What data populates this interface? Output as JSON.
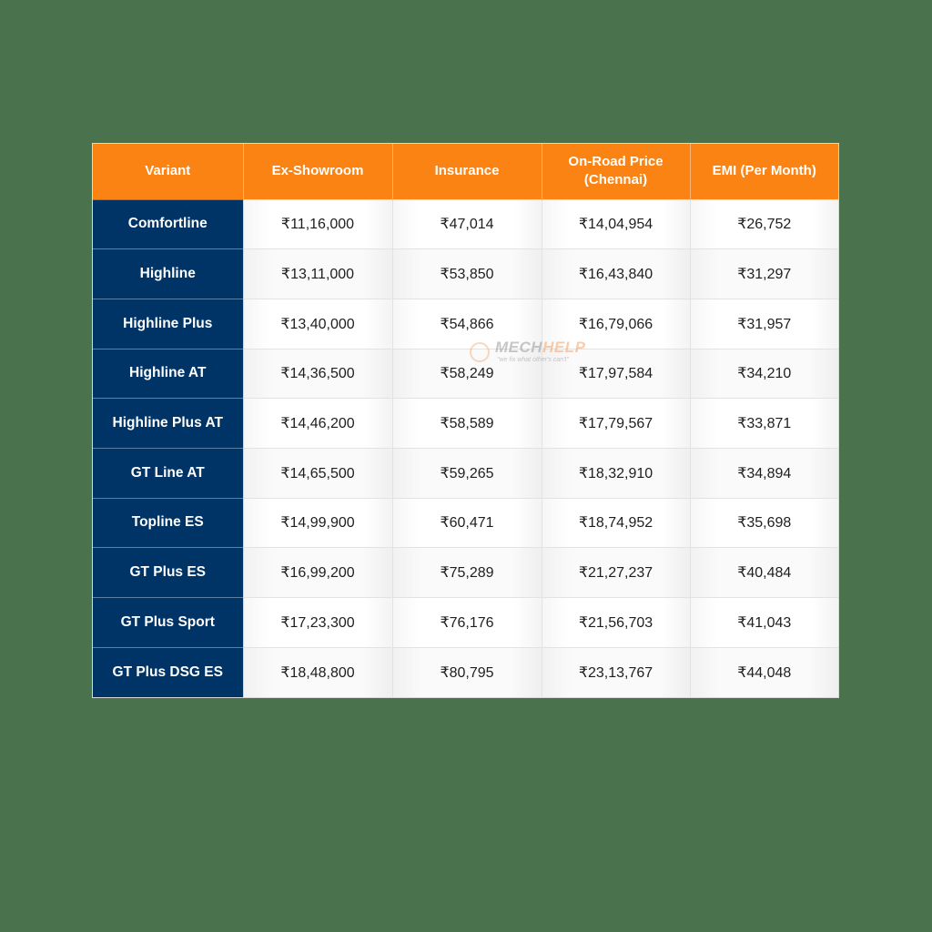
{
  "table": {
    "headers": [
      "Variant",
      "Ex-Showroom",
      "Insurance",
      "On-Road Price (Chennai)",
      "EMI (Per Month)"
    ],
    "header_lines": {
      "on_road_line1": "On-Road Price",
      "on_road_line2": "(Chennai)"
    },
    "rows": [
      {
        "variant": "Comfortline",
        "ex_showroom": "₹11,16,000",
        "insurance": "₹47,014",
        "on_road": "₹14,04,954",
        "emi": "₹26,752"
      },
      {
        "variant": "Highline",
        "ex_showroom": "₹13,11,000",
        "insurance": "₹53,850",
        "on_road": "₹16,43,840",
        "emi": "₹31,297"
      },
      {
        "variant": "Highline Plus",
        "ex_showroom": "₹13,40,000",
        "insurance": "₹54,866",
        "on_road": "₹16,79,066",
        "emi": "₹31,957"
      },
      {
        "variant": "Highline AT",
        "ex_showroom": "₹14,36,500",
        "insurance": "₹58,249",
        "on_road": "₹17,97,584",
        "emi": "₹34,210"
      },
      {
        "variant": "Highline Plus AT",
        "ex_showroom": "₹14,46,200",
        "insurance": "₹58,589",
        "on_road": "₹17,79,567",
        "emi": "₹33,871"
      },
      {
        "variant": "GT Line AT",
        "ex_showroom": "₹14,65,500",
        "insurance": "₹59,265",
        "on_road": "₹18,32,910",
        "emi": "₹34,894"
      },
      {
        "variant": "Topline ES",
        "ex_showroom": "₹14,99,900",
        "insurance": "₹60,471",
        "on_road": "₹18,74,952",
        "emi": "₹35,698"
      },
      {
        "variant": "GT Plus ES",
        "ex_showroom": "₹16,99,200",
        "insurance": "₹75,289",
        "on_road": "₹21,27,237",
        "emi": "₹40,484"
      },
      {
        "variant": "GT Plus Sport",
        "ex_showroom": "₹17,23,300",
        "insurance": "₹76,176",
        "on_road": "₹21,56,703",
        "emi": "₹41,043"
      },
      {
        "variant": "GT Plus DSG ES",
        "ex_showroom": "₹18,48,800",
        "insurance": "₹80,795",
        "on_road": "₹23,13,767",
        "emi": "₹44,048"
      }
    ]
  },
  "watermark": {
    "brand_part1": "MECH",
    "brand_part2": "HELP",
    "tagline": "\"we fix what other's can't\""
  },
  "colors": {
    "background": "#4a724c",
    "header_orange": "#fb8313",
    "variant_navy": "#003366",
    "cell_text": "#1e1e1e"
  }
}
